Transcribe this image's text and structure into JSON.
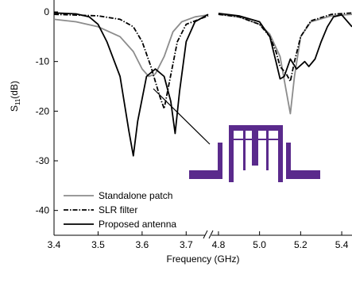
{
  "chart_data": {
    "type": "line",
    "xlabel": "Frequency (GHz)",
    "ylabel_main": "S",
    "ylabel_sub": "11",
    "ylabel_unit": "(dB)",
    "ylim": [
      -45,
      0
    ],
    "xaxis_break": true,
    "x_segments": [
      {
        "range": [
          3.4,
          3.75
        ],
        "ticks": [
          3.4,
          3.5,
          3.6,
          3.7
        ],
        "tick_labels": [
          "3.4",
          "3.5",
          "3.6",
          "3.7"
        ]
      },
      {
        "range": [
          4.75,
          5.45
        ],
        "ticks": [
          4.8,
          5.0,
          5.2,
          5.4
        ],
        "tick_labels": [
          "4.8",
          "5.0",
          "5.2",
          "5.4"
        ]
      }
    ],
    "y_ticks": [
      0,
      -10,
      -20,
      -30,
      -40
    ],
    "y_tick_labels": [
      "0",
      "-10",
      "-20",
      "-30",
      "-40"
    ],
    "legend_position": "bottom-left",
    "inset_icon": "slr-filter-layout",
    "inset_color": "#5a2a8c",
    "series": [
      {
        "name": "Standalone patch",
        "color": "#8c8c8c",
        "style": "solid",
        "points": [
          [
            3.4,
            -1.5
          ],
          [
            3.45,
            -2.0
          ],
          [
            3.5,
            -3.0
          ],
          [
            3.55,
            -5.0
          ],
          [
            3.58,
            -8.0
          ],
          [
            3.6,
            -11.5
          ],
          [
            3.615,
            -13.0
          ],
          [
            3.63,
            -12.5
          ],
          [
            3.65,
            -9.0
          ],
          [
            3.67,
            -4.0
          ],
          [
            3.69,
            -2.0
          ],
          [
            3.72,
            -1.0
          ],
          [
            3.75,
            -0.6
          ],
          [
            4.8,
            -0.5
          ],
          [
            4.9,
            -1.0
          ],
          [
            5.0,
            -2.5
          ],
          [
            5.05,
            -4.5
          ],
          [
            5.1,
            -9.0
          ],
          [
            5.13,
            -16.0
          ],
          [
            5.15,
            -20.5
          ],
          [
            5.17,
            -13.0
          ],
          [
            5.2,
            -5.0
          ],
          [
            5.25,
            -2.0
          ],
          [
            5.35,
            -0.8
          ],
          [
            5.45,
            -0.5
          ]
        ]
      },
      {
        "name": "SLR filter",
        "color": "#000000",
        "style": "dashdot",
        "points": [
          [
            3.4,
            -0.5
          ],
          [
            3.5,
            -0.8
          ],
          [
            3.55,
            -1.5
          ],
          [
            3.58,
            -3.0
          ],
          [
            3.6,
            -6.0
          ],
          [
            3.62,
            -11.0
          ],
          [
            3.64,
            -17.0
          ],
          [
            3.65,
            -19.5
          ],
          [
            3.66,
            -15.0
          ],
          [
            3.68,
            -6.0
          ],
          [
            3.7,
            -2.5
          ],
          [
            3.75,
            -0.8
          ],
          [
            4.8,
            -0.5
          ],
          [
            4.9,
            -1.0
          ],
          [
            5.0,
            -2.5
          ],
          [
            5.05,
            -5.0
          ],
          [
            5.08,
            -8.0
          ],
          [
            5.1,
            -11.0
          ],
          [
            5.13,
            -12.5
          ],
          [
            5.15,
            -14.0
          ],
          [
            5.17,
            -10.0
          ],
          [
            5.2,
            -5.0
          ],
          [
            5.25,
            -1.8
          ],
          [
            5.35,
            -0.5
          ],
          [
            5.45,
            -0.2
          ]
        ]
      },
      {
        "name": "Proposed antenna",
        "color": "#000000",
        "style": "solid",
        "points": [
          [
            3.4,
            -0.2
          ],
          [
            3.45,
            -0.4
          ],
          [
            3.48,
            -1.0
          ],
          [
            3.5,
            -2.5
          ],
          [
            3.52,
            -6.0
          ],
          [
            3.55,
            -13.0
          ],
          [
            3.57,
            -24.0
          ],
          [
            3.58,
            -29.0
          ],
          [
            3.59,
            -22.0
          ],
          [
            3.61,
            -13.0
          ],
          [
            3.63,
            -11.5
          ],
          [
            3.65,
            -13.0
          ],
          [
            3.665,
            -18.0
          ],
          [
            3.675,
            -24.5
          ],
          [
            3.685,
            -16.0
          ],
          [
            3.7,
            -6.0
          ],
          [
            3.72,
            -2.0
          ],
          [
            3.75,
            -0.5
          ],
          [
            4.8,
            -0.3
          ],
          [
            4.9,
            -0.8
          ],
          [
            5.0,
            -2.0
          ],
          [
            5.05,
            -5.0
          ],
          [
            5.08,
            -10.0
          ],
          [
            5.1,
            -13.5
          ],
          [
            5.12,
            -13.0
          ],
          [
            5.15,
            -9.5
          ],
          [
            5.18,
            -11.5
          ],
          [
            5.22,
            -10.0
          ],
          [
            5.24,
            -11.0
          ],
          [
            5.27,
            -9.5
          ],
          [
            5.3,
            -6.0
          ],
          [
            5.33,
            -3.0
          ],
          [
            5.36,
            -1.0
          ],
          [
            5.4,
            -0.6
          ],
          [
            5.45,
            -3.0
          ]
        ]
      }
    ]
  }
}
